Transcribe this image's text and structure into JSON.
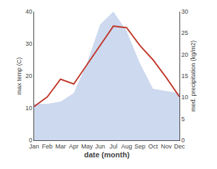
{
  "chart_data": {
    "type": "line",
    "categories": [
      "Jan",
      "Feb",
      "Mar",
      "Apr",
      "May",
      "Jun",
      "Jul",
      "Aug",
      "Sep",
      "Oct",
      "Nov",
      "Dec"
    ],
    "series": [
      {
        "type": "area",
        "axis": "y2",
        "color": "#b8c9e8",
        "values": [
          8.5,
          8.5,
          9.0,
          11.0,
          18.0,
          27.0,
          30.0,
          25.5,
          18.0,
          12.0,
          11.5,
          11.0
        ]
      },
      {
        "type": "line",
        "color": "#c0392b",
        "values": [
          10.5,
          13.5,
          19.0,
          17.5,
          23.5,
          29.5,
          35.5,
          35.0,
          29.5,
          25.0,
          19.5,
          13.5
        ]
      }
    ],
    "xlabel": "date (month)",
    "ylabel": "max temp (C)",
    "y2label": "med. precipitation (kg/m2)",
    "ylim": [
      0,
      40
    ],
    "yticks": [
      0,
      10,
      20,
      30,
      40
    ],
    "y2lim": [
      0,
      30
    ],
    "y2ticks": [
      0,
      5,
      10,
      15,
      20,
      25,
      30
    ],
    "grid": false
  }
}
